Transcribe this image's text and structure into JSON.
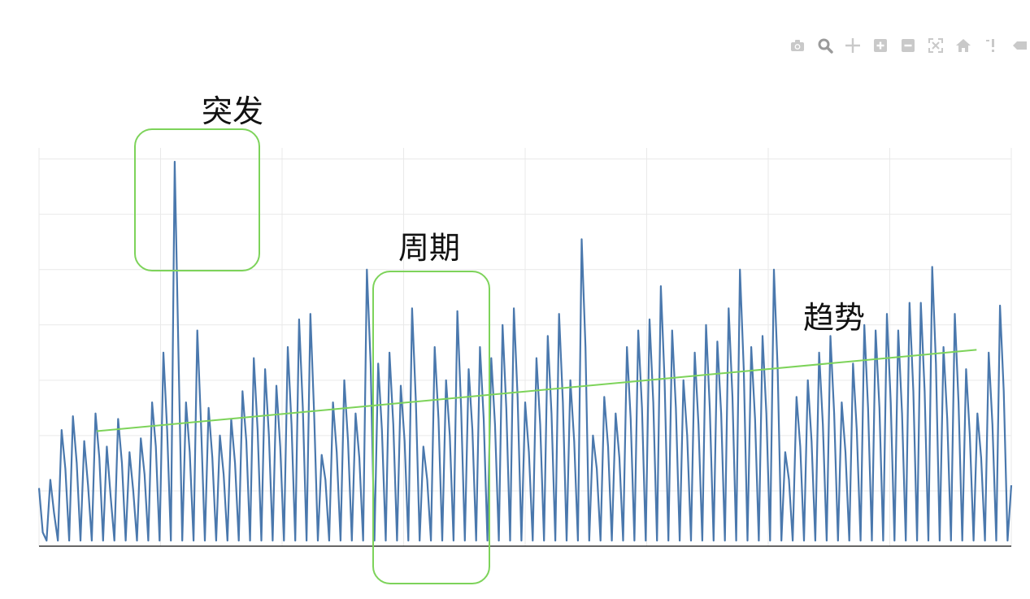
{
  "toolbar": {
    "icons": [
      "camera-icon",
      "zoom-icon",
      "pan-icon",
      "zoom-in-icon",
      "zoom-out-icon",
      "autoscale-icon",
      "home-icon",
      "spike-lines-icon",
      "hover-icon"
    ]
  },
  "annotations": {
    "burst_label": "突发",
    "period_label": "周期",
    "trend_label": "趋势"
  },
  "colors": {
    "series": "#4a78ad",
    "trend": "#7dd35a",
    "grid": "#e9e9e9",
    "axis": "#333333"
  },
  "chart_data": {
    "type": "line",
    "title": "",
    "xlabel": "",
    "ylabel": "",
    "grid": true,
    "legend": "none",
    "xlim": [
      0,
      84
    ],
    "ylim": [
      0,
      7.2
    ],
    "series": [
      {
        "values": [
          1.05,
          0.25,
          0.1,
          1.2,
          0.6,
          0.1,
          2.1,
          1.4,
          0.1,
          2.35,
          1.5,
          0.1,
          1.9,
          1.1,
          0.1,
          2.4,
          1.6,
          0.1,
          1.8,
          0.9,
          0.1,
          2.3,
          1.5,
          0.1,
          1.7,
          1.0,
          0.1,
          1.95,
          1.3,
          0.1,
          2.6,
          1.8,
          0.1,
          3.5,
          2.1,
          0.1,
          6.95,
          3.5,
          0.1,
          2.6,
          1.7,
          0.1,
          3.9,
          2.2,
          0.1,
          2.5,
          1.6,
          0.1,
          2.0,
          1.3,
          0.1,
          2.3,
          1.5,
          0.1,
          2.8,
          1.9,
          0.1,
          3.4,
          2.1,
          0.1,
          3.2,
          2.0,
          0.1,
          2.9,
          1.8,
          0.1,
          3.6,
          2.2,
          0.1,
          4.1,
          2.5,
          0.1,
          4.2,
          2.4,
          0.1,
          1.65,
          1.2,
          0.1,
          2.6,
          1.7,
          0.1,
          3.0,
          1.9,
          0.1,
          2.4,
          1.6,
          0.1,
          5.0,
          3.3,
          0.1,
          3.3,
          2.1,
          0.1,
          3.5,
          2.2,
          0.1,
          2.9,
          1.9,
          0.1,
          4.3,
          2.6,
          0.1,
          1.8,
          1.2,
          0.1,
          3.6,
          2.3,
          0.1,
          3.0,
          2.0,
          0.1,
          4.25,
          2.5,
          0.1,
          3.2,
          2.1,
          0.1,
          3.6,
          2.3,
          0.1,
          3.4,
          2.2,
          0.1,
          4.0,
          2.5,
          0.1,
          4.3,
          2.7,
          0.1,
          2.6,
          1.7,
          0.1,
          3.4,
          2.2,
          0.1,
          3.8,
          2.4,
          0.1,
          4.2,
          2.6,
          0.1,
          3.0,
          1.9,
          0.1,
          5.55,
          3.6,
          0.1,
          2.0,
          1.4,
          0.1,
          2.7,
          1.8,
          0.1,
          2.4,
          1.6,
          0.1,
          3.6,
          2.3,
          0.1,
          3.9,
          2.5,
          0.1,
          4.1,
          2.6,
          0.1,
          4.7,
          3.0,
          0.1,
          3.9,
          2.5,
          0.1,
          3.0,
          2.0,
          0.1,
          3.5,
          2.2,
          0.1,
          4.0,
          2.5,
          0.1,
          3.7,
          2.4,
          0.1,
          4.3,
          2.7,
          0.1,
          5.0,
          3.2,
          0.1,
          3.6,
          2.3,
          0.1,
          3.8,
          2.4,
          0.1,
          5.0,
          3.2,
          0.1,
          1.7,
          1.2,
          0.1,
          2.7,
          1.8,
          0.1,
          3.0,
          1.9,
          0.1,
          3.5,
          2.2,
          0.1,
          3.8,
          2.4,
          0.1,
          2.6,
          1.7,
          0.1,
          3.3,
          2.1,
          0.1,
          4.0,
          2.5,
          0.1,
          3.9,
          2.5,
          0.1,
          4.2,
          2.6,
          0.1,
          3.9,
          2.4,
          0.1,
          4.4,
          2.8,
          0.1,
          4.4,
          2.8,
          0.1,
          5.05,
          3.3,
          0.1,
          3.6,
          2.3,
          0.1,
          4.2,
          2.6,
          0.1,
          3.2,
          2.0,
          0.1,
          2.4,
          1.6,
          0.1,
          3.5,
          2.2,
          0.1,
          4.35,
          2.8,
          0.1,
          1.1
        ],
        "color": "#4a78ad"
      }
    ],
    "trend_line": {
      "x": [
        5,
        81
      ],
      "y": [
        2.08,
        3.55
      ]
    }
  }
}
